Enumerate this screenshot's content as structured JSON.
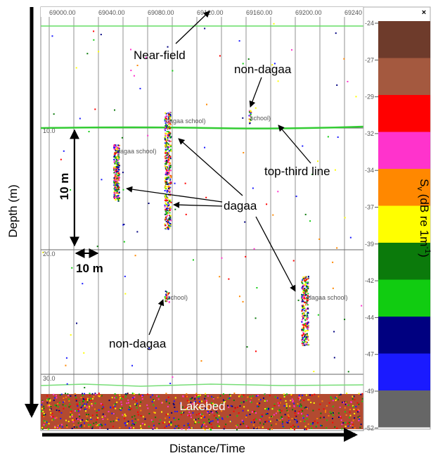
{
  "axis_labels": {
    "y": "Depth (m)",
    "x": "Distance/Time"
  },
  "ruler_labels": [
    "69000.00",
    "69040.00",
    "69080.00",
    "69120.00",
    "69160.00",
    "69200.00",
    "69240"
  ],
  "depth_labels": [
    "10.0",
    "20.0",
    "30.0"
  ],
  "colorbar": {
    "close": "×",
    "title": "S",
    "title_sub": "v",
    "title_rest": " (dB re 1m",
    "title_sup": "-1",
    "title_end": ")",
    "labels": [
      "-24",
      "-27",
      "-29",
      "-32",
      "-34",
      "-37",
      "-39",
      "-42",
      "-44",
      "-47",
      "-49",
      "-52"
    ],
    "colors": [
      "#6e3b2b",
      "#a4593f",
      "#ff0000",
      "#ff33cc",
      "#ff8800",
      "#ffff00",
      "#0b7a0b",
      "#11cc11",
      "#000080",
      "#1a1aff",
      "#666666"
    ]
  },
  "annotations": {
    "near_field": "Near-field",
    "non_dagaa_top": "non-dagaa",
    "top_third": "top-third line",
    "dagaa": "dagaa",
    "ten_m_vertical": "10 m",
    "ten_m_horizontal": "10 m",
    "non_dagaa_bottom": "non-dagaa",
    "lakebed": "Lakebed"
  },
  "school_labels": [
    "dagaa school)",
    "school)",
    "dagaa school)",
    "school)",
    "dagaa school)"
  ]
}
